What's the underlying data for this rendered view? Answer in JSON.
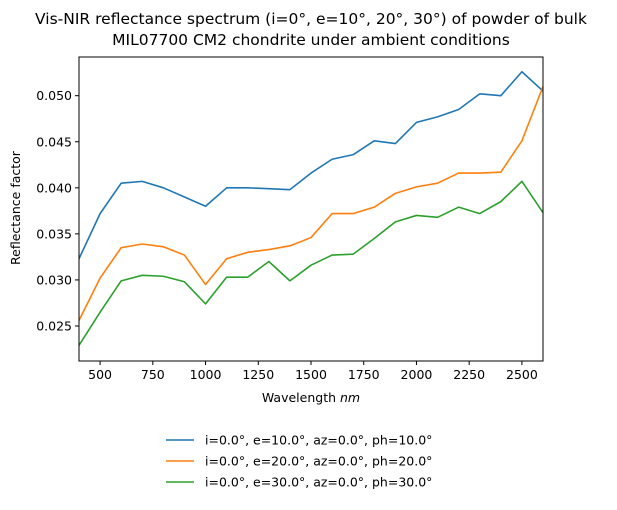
{
  "chart_data": {
    "type": "line",
    "title_lines": [
      "Vis-NIR reflectance spectrum (i=0°, e=10°, 20°, 30°) of powder of bulk",
      "MIL07700 CM2 chondrite under ambient conditions"
    ],
    "xlabel": "Wavelength ",
    "xlabel_unit": "nm",
    "ylabel": "Reflectance factor",
    "xlim": [
      400,
      2600
    ],
    "ylim": [
      0.0212,
      0.0542
    ],
    "xticks": [
      500,
      750,
      1000,
      1250,
      1500,
      1750,
      2000,
      2250,
      2500
    ],
    "xtick_labels": [
      "500",
      "750",
      "1000",
      "1250",
      "1500",
      "1750",
      "2000",
      "2250",
      "2500"
    ],
    "yticks": [
      0.025,
      0.03,
      0.035,
      0.04,
      0.045,
      0.05
    ],
    "ytick_labels": [
      "0.025",
      "0.030",
      "0.035",
      "0.040",
      "0.045",
      "0.050"
    ],
    "grid": false,
    "legend_position": "below-center",
    "x": [
      400,
      500,
      600,
      700,
      800,
      900,
      1000,
      1100,
      1200,
      1300,
      1400,
      1500,
      1600,
      1700,
      1800,
      1900,
      2000,
      2100,
      2200,
      2300,
      2400,
      2500,
      2600
    ],
    "series": [
      {
        "name": "i=0.0°, e=10.0°, az=0.0°, ph=10.0°",
        "color": "#1f77b4",
        "values": [
          0.0323,
          0.0372,
          0.0405,
          0.0407,
          0.04,
          0.039,
          0.038,
          0.04,
          0.04,
          0.0399,
          0.0398,
          0.0416,
          0.0431,
          0.0436,
          0.0451,
          0.0448,
          0.0471,
          0.0477,
          0.0485,
          0.0502,
          0.05,
          0.0526,
          0.0505
        ]
      },
      {
        "name": "i=0.0°, e=20.0°, az=0.0°, ph=20.0°",
        "color": "#ff7f0e",
        "values": [
          0.0256,
          0.0302,
          0.0335,
          0.0339,
          0.0336,
          0.0327,
          0.0295,
          0.0323,
          0.033,
          0.0333,
          0.0337,
          0.0346,
          0.0372,
          0.0372,
          0.0379,
          0.0394,
          0.0401,
          0.0405,
          0.0416,
          0.0416,
          0.0417,
          0.0451,
          0.051
        ]
      },
      {
        "name": "i=0.0°, e=30.0°, az=0.0°, ph=30.0°",
        "color": "#2ca02c",
        "values": [
          0.0229,
          0.0265,
          0.0299,
          0.0305,
          0.0304,
          0.0298,
          0.0274,
          0.0303,
          0.0303,
          0.032,
          0.0299,
          0.0316,
          0.0327,
          0.0328,
          0.0345,
          0.0363,
          0.037,
          0.0368,
          0.0379,
          0.0372,
          0.0385,
          0.0407,
          0.0373
        ]
      }
    ]
  }
}
